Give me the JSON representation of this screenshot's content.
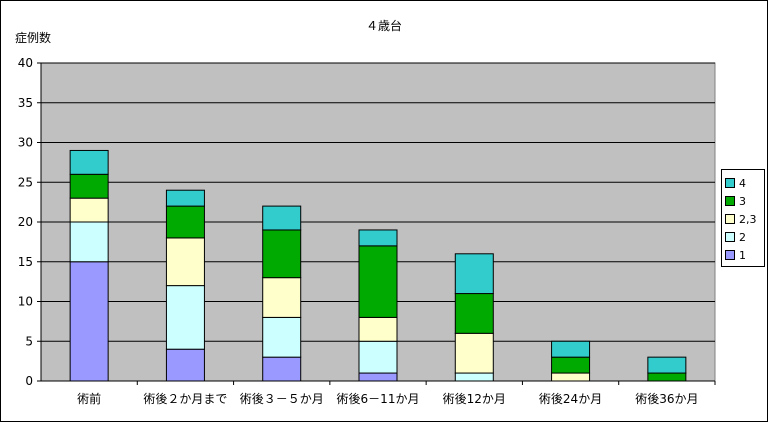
{
  "chart_data": {
    "type": "bar",
    "stacked": true,
    "title": "４歳台",
    "ylabel": "症例数",
    "xlabel": "",
    "ylim": [
      0,
      40
    ],
    "yticks": [
      0,
      5,
      10,
      15,
      20,
      25,
      30,
      35,
      40
    ],
    "grid": true,
    "legend_position": "right",
    "categories": [
      "術前",
      "術後２か月まで",
      "術後３－５か月",
      "術後6－11か月",
      "術後12か月",
      "術後24か月",
      "術後36か月"
    ],
    "series": [
      {
        "name": "1",
        "color": "#9999ff",
        "values": [
          15,
          4,
          3,
          1,
          0,
          0,
          0
        ]
      },
      {
        "name": "2",
        "color": "#ccffff",
        "values": [
          5,
          8,
          5,
          4,
          1,
          0,
          0
        ]
      },
      {
        "name": "2,3",
        "color": "#ffffcc",
        "values": [
          3,
          6,
          5,
          3,
          5,
          1,
          0
        ]
      },
      {
        "name": "3",
        "color": "#00aa00",
        "values": [
          3,
          4,
          6,
          9,
          5,
          2,
          1
        ]
      },
      {
        "name": "4",
        "color": "#33cccc",
        "values": [
          3,
          2,
          3,
          2,
          5,
          2,
          2
        ]
      }
    ],
    "legend_order": [
      "4",
      "3",
      "2,3",
      "2",
      "1"
    ]
  },
  "colors": {
    "plot_background": "#c0c0c0",
    "gridline": "#000000"
  }
}
